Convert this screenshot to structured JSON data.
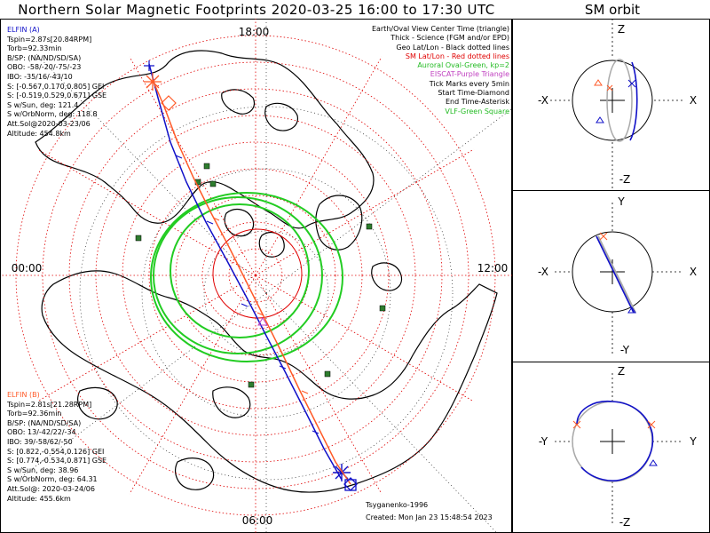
{
  "title": "Northern Solar Magnetic Footprints 2020-03-25 16:00 to 17:30 UTC",
  "orbit_panel_title": "SM orbit",
  "map": {
    "mlt_labels": [
      "18:00",
      "00:00",
      "12:00",
      "06:00"
    ]
  },
  "elfin_a": {
    "color": "#1010c8",
    "lines": [
      "ELFIN (A)",
      "Tspin=2.87s[20.84RPM]",
      "Torb=92.33min",
      "B/SP: (NA/ND/SD/SA)",
      "OBO: -58/-20/-75/-23",
      "IBO: -35/16/-43/10",
      "S: [-0.567,0.170,0.805] GEI",
      "S: [-0.519,0.529,0.671] GSE",
      "S w/Sun, deg: 121.4",
      "S w/OrbNorm, deg: 118.8",
      "Att.Sol@2020-03-23/06",
      "Altitude: 454.8km"
    ]
  },
  "elfin_b": {
    "color": "#ff5a28",
    "lines": [
      "ELFIN (B)",
      "Tspin=2.81s[21.28RPM]",
      "Torb=92.36min",
      "B/SP: (NA/ND/SD/SA)",
      "OBO: 13/-42/22/-34",
      "IBO: 39/-58/62/-50",
      "S: [0.822,-0.554,0.126] GEI",
      "S: [0.774,-0.534,0.871] GSE",
      "S w/Sun, deg: 38.96",
      "S w/OrbNorm, deg: 64.31",
      "Att.Sol@: 2020-03-24/06",
      "Altitude: 455.6km"
    ]
  },
  "legend": [
    {
      "text": "Earth/Oval View Center Time (triangle)",
      "color": "#000000"
    },
    {
      "text": "Thick - Science (FGM and/or EPD)",
      "color": "#000000"
    },
    {
      "text": "Geo Lat/Lon - Black dotted lines",
      "color": "#000000"
    },
    {
      "text": "SM Lat/Lon - Red dotted lines",
      "color": "#e00000"
    },
    {
      "text": "Auroral Oval-Green, kp=2",
      "color": "#22bb22"
    },
    {
      "text": "EISCAT-Purple Triangle",
      "color": "#c040c0"
    },
    {
      "text": "Tick Marks every 5min",
      "color": "#000000"
    },
    {
      "text": "Start Time-Diamond",
      "color": "#000000"
    },
    {
      "text": "End Time-Asterisk",
      "color": "#000000"
    },
    {
      "text": "VLF-Green Square",
      "color": "#22bb22"
    }
  ],
  "footer": {
    "model": "Tsyganenko-1996",
    "created": "Created: Mon Jan 23 15:48:54 2023"
  },
  "orbit_panels": [
    {
      "top": "Z",
      "bottom": "-Z",
      "left": "-X",
      "right": "X"
    },
    {
      "top": "Y",
      "bottom": "-Y",
      "left": "-X",
      "right": "X"
    },
    {
      "top": "Z",
      "bottom": "-Z",
      "left": "-Y",
      "right": "Y"
    }
  ],
  "colors": {
    "elfin_a": "#1010c8",
    "elfin_b": "#ff5a28",
    "auroral_oval": "#22cc22",
    "sm_grid": "#e00000",
    "vlf": "#2e7d2e",
    "orbit_grey": "#aaaaaa"
  }
}
